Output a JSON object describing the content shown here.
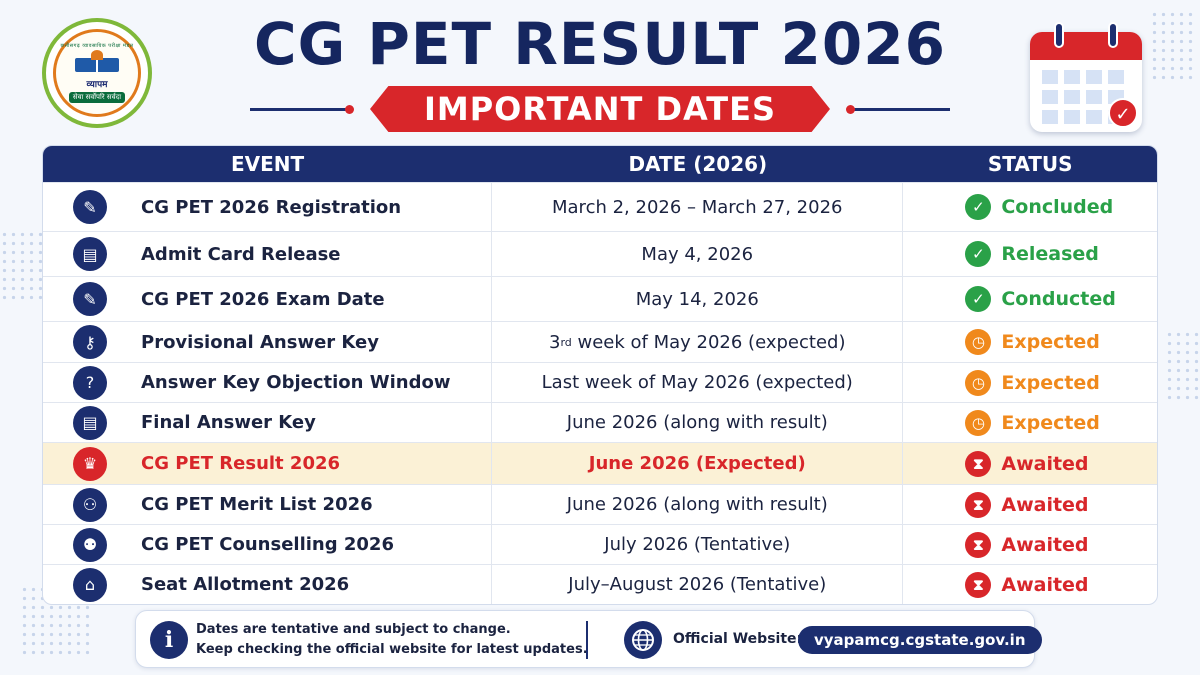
{
  "header": {
    "title": "CG PET RESULT 2026",
    "banner": "IMPORTANT DATES",
    "logo": {
      "top_text": "छत्तीसगढ़ व्यावसायिक परीक्षा मंडल",
      "name": "व्यापम",
      "tagline": "सेवा सर्वोपरि सर्वदा"
    }
  },
  "table": {
    "headers": [
      "EVENT",
      "DATE (2026)",
      "STATUS"
    ],
    "rows": [
      {
        "event": "CG PET 2026 Registration",
        "date": "March 2, 2026 – March 27, 2026",
        "status": "Concluded",
        "status_type": "green",
        "icon": "form-icon"
      },
      {
        "event": "Admit Card Release",
        "date": "May 4, 2026",
        "status": "Released",
        "status_type": "green",
        "icon": "id-card-icon"
      },
      {
        "event": "CG PET 2026 Exam Date",
        "date": "May 14, 2026",
        "status": "Conducted",
        "status_type": "green",
        "icon": "exam-icon"
      },
      {
        "event": "Provisional Answer Key",
        "date_parts": [
          "3",
          "rd",
          " week of May 2026 (expected)"
        ],
        "status": "Expected",
        "status_type": "orange",
        "icon": "key-icon"
      },
      {
        "event": "Answer Key Objection Window",
        "date": "Last week of May 2026 (expected)",
        "status": "Expected",
        "status_type": "orange",
        "icon": "question-icon"
      },
      {
        "event": "Final Answer Key",
        "date": "June 2026 (along with result)",
        "status": "Expected",
        "status_type": "orange",
        "icon": "document-check-icon"
      },
      {
        "event": "CG PET Result 2026",
        "date": "June 2026 (Expected)",
        "status": "Awaited",
        "status_type": "red",
        "icon": "trophy-icon",
        "highlight": true
      },
      {
        "event": "CG PET Merit List 2026",
        "date": "June 2026 (along with result)",
        "status": "Awaited",
        "status_type": "red",
        "icon": "group-icon"
      },
      {
        "event": "CG PET Counselling 2026",
        "date": "July 2026 (Tentative)",
        "status": "Awaited",
        "status_type": "red",
        "icon": "counselling-icon"
      },
      {
        "event": "Seat Allotment 2026",
        "date": "July–August 2026 (Tentative)",
        "status": "Awaited",
        "status_type": "red",
        "icon": "building-icon"
      }
    ]
  },
  "footer": {
    "note_line1": "Dates are tentative and subject to change.",
    "note_line2": "Keep checking the official website for latest updates.",
    "site_label": "Official Website:",
    "site_url": "vyapamcg.cgstate.gov.in"
  },
  "colors": {
    "navy": "#1c2e6f",
    "red": "#d8262a",
    "green": "#2aa148",
    "orange": "#f0891c",
    "highlight_row": "#fbf1d6"
  }
}
